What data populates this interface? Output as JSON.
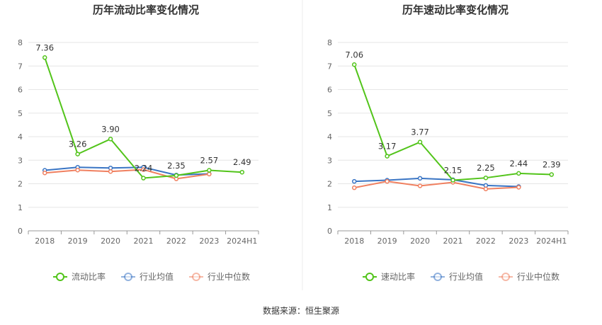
{
  "footer": {
    "source": "数据来源：恒生聚源"
  },
  "chart_data": [
    {
      "type": "line",
      "title": "历年流动比率变化情况",
      "categories": [
        "2018",
        "2019",
        "2020",
        "2021",
        "2022",
        "2023",
        "2024H1"
      ],
      "ylim": [
        0,
        8
      ],
      "yticks": [
        "0",
        "1",
        "2",
        "3",
        "4",
        "5",
        "6",
        "7",
        "8"
      ],
      "grid": true,
      "legend_position": "bottom",
      "series": [
        {
          "name": "流动比率",
          "color": "#52c41a",
          "values": [
            7.36,
            3.26,
            3.9,
            2.24,
            2.35,
            2.57,
            2.49
          ],
          "labels": [
            "7.36",
            "3.26",
            "3.90",
            "2.24",
            "2.35",
            "2.57",
            "2.49"
          ]
        },
        {
          "name": "行业均值",
          "color": "#3a75c4",
          "values": [
            2.57,
            2.7,
            2.67,
            2.7,
            2.37,
            2.42,
            null
          ]
        },
        {
          "name": "行业中位数",
          "color": "#f08060",
          "values": [
            2.46,
            2.58,
            2.52,
            2.6,
            2.21,
            2.41,
            null
          ]
        }
      ]
    },
    {
      "type": "line",
      "title": "历年速动比率变化情况",
      "categories": [
        "2018",
        "2019",
        "2020",
        "2021",
        "2022",
        "2023",
        "2024H1"
      ],
      "ylim": [
        0,
        8
      ],
      "yticks": [
        "0",
        "1",
        "2",
        "3",
        "4",
        "5",
        "6",
        "7",
        "8"
      ],
      "grid": true,
      "legend_position": "bottom",
      "series": [
        {
          "name": "速动比率",
          "color": "#52c41a",
          "values": [
            7.06,
            3.17,
            3.77,
            2.15,
            2.25,
            2.44,
            2.39
          ],
          "labels": [
            "7.06",
            "3.17",
            "3.77",
            "2.15",
            "2.25",
            "2.44",
            "2.39"
          ]
        },
        {
          "name": "行业均值",
          "color": "#3a75c4",
          "values": [
            2.1,
            2.15,
            2.23,
            2.17,
            1.93,
            1.88,
            null
          ]
        },
        {
          "name": "行业中位数",
          "color": "#f08060",
          "values": [
            1.83,
            2.1,
            1.91,
            2.06,
            1.78,
            1.85,
            null
          ]
        }
      ]
    }
  ]
}
